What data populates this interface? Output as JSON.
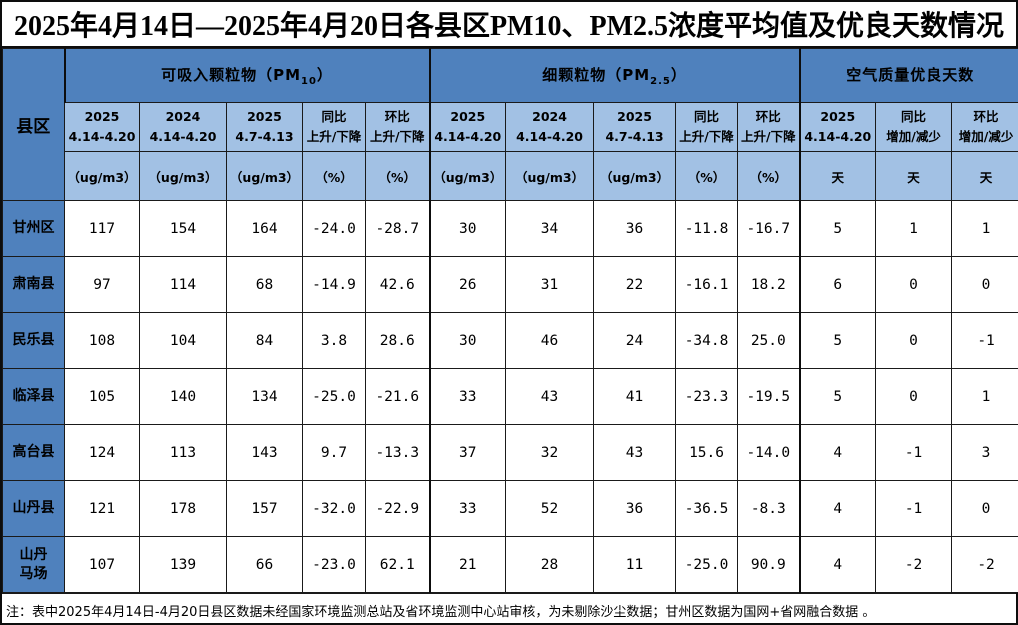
{
  "title": "2025年4月14日—2025年4月20日各县区PM10、PM2.5浓度平均值及优良天数情况",
  "note": "注：表中2025年4月14日-4月20日县区数据未经国家环境监测总站及省环境监测中心站审核，为未剔除沙尘数据；甘州区数据为国网+省网融合数据 。",
  "colors": {
    "group_header_bg": "#4f81bd",
    "subheader_bg": "#a2c1e4",
    "grid_border": "#1a1a1a"
  },
  "table": {
    "corner_header": "县区",
    "groups": [
      {
        "label_prefix": "可吸入颗粒物（PM",
        "label_sub": "10",
        "label_suffix": "）",
        "col_count": 5
      },
      {
        "label_prefix": "细颗粒物（PM",
        "label_sub": "2.5",
        "label_suffix": "）",
        "col_count": 5
      },
      {
        "label_prefix": "空气质量优良天数",
        "label_sub": "",
        "label_suffix": "",
        "col_count": 3
      }
    ],
    "columns": [
      {
        "line1": "2025",
        "line2": "4.14-4.20",
        "unit": "（ug/m3）"
      },
      {
        "line1": "2024",
        "line2": "4.14-4.20",
        "unit": "（ug/m3）"
      },
      {
        "line1": "2025",
        "line2": "4.7-4.13",
        "unit": "（ug/m3）"
      },
      {
        "line1": "同比",
        "line2": "上升/下降",
        "unit": "（%）"
      },
      {
        "line1": "环比",
        "line2": "上升/下降",
        "unit": "（%）"
      },
      {
        "line1": "2025",
        "line2": "4.14-4.20",
        "unit": "（ug/m3）"
      },
      {
        "line1": "2024",
        "line2": "4.14-4.20",
        "unit": "（ug/m3）"
      },
      {
        "line1": "2025",
        "line2": "4.7-4.13",
        "unit": "（ug/m3）"
      },
      {
        "line1": "同比",
        "line2": "上升/下降",
        "unit": "（%）"
      },
      {
        "line1": "环比",
        "line2": "上升/下降",
        "unit": "（%）"
      },
      {
        "line1": "2025",
        "line2": "4.14-4.20",
        "unit": "天"
      },
      {
        "line1": "同比",
        "line2": "增加/减少",
        "unit": "天"
      },
      {
        "line1": "环比",
        "line2": "增加/减少",
        "unit": "天"
      }
    ],
    "rows": [
      {
        "name": "甘州区",
        "values": [
          "117",
          "154",
          "164",
          "-24.0",
          "-28.7",
          "30",
          "34",
          "36",
          "-11.8",
          "-16.7",
          "5",
          "1",
          "1"
        ]
      },
      {
        "name": "肃南县",
        "values": [
          "97",
          "114",
          "68",
          "-14.9",
          "42.6",
          "26",
          "31",
          "22",
          "-16.1",
          "18.2",
          "6",
          "0",
          "0"
        ]
      },
      {
        "name": "民乐县",
        "values": [
          "108",
          "104",
          "84",
          "3.8",
          "28.6",
          "30",
          "46",
          "24",
          "-34.8",
          "25.0",
          "5",
          "0",
          "-1"
        ]
      },
      {
        "name": "临泽县",
        "values": [
          "105",
          "140",
          "134",
          "-25.0",
          "-21.6",
          "33",
          "43",
          "41",
          "-23.3",
          "-19.5",
          "5",
          "0",
          "1"
        ]
      },
      {
        "name": "高台县",
        "values": [
          "124",
          "113",
          "143",
          "9.7",
          "-13.3",
          "37",
          "32",
          "43",
          "15.6",
          "-14.0",
          "4",
          "-1",
          "3"
        ]
      },
      {
        "name": "山丹县",
        "values": [
          "121",
          "178",
          "157",
          "-32.0",
          "-22.9",
          "33",
          "52",
          "36",
          "-36.5",
          "-8.3",
          "4",
          "-1",
          "0"
        ]
      },
      {
        "name": "山丹\n马场",
        "values": [
          "107",
          "139",
          "66",
          "-23.0",
          "62.1",
          "21",
          "28",
          "11",
          "-25.0",
          "90.9",
          "4",
          "-2",
          "-2"
        ]
      }
    ]
  }
}
